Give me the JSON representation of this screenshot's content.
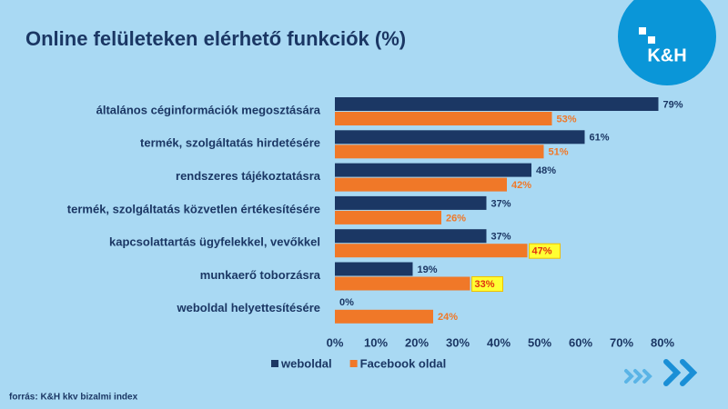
{
  "chart_data": {
    "type": "hbar",
    "title": "Online felületeken elérhető funkciók (%)",
    "logo": "K&H",
    "source": "forrás: K&H kkv bizalmi index",
    "categories": [
      "általános céginformációk megosztására",
      "termék, szolgáltatás hirdetésére",
      "rendszeres tájékoztatásra",
      "termék, szolgáltatás közvetlen értékesítésére",
      "kapcsolattartás ügyfelekkel, vevőkkel",
      "munkaerő toborzásra",
      "weboldal helyettesítésére"
    ],
    "series": [
      {
        "name": "weboldal",
        "color": "#1b3764",
        "values": [
          79,
          61,
          48,
          37,
          37,
          19,
          0
        ],
        "value_labels": [
          "79%",
          "61%",
          "48%",
          "37%",
          "37%",
          "19%",
          "0%"
        ]
      },
      {
        "name": "Facebook oldal",
        "color": "#f07828",
        "values": [
          53,
          51,
          42,
          26,
          47,
          33,
          24
        ],
        "value_labels": [
          "53%",
          "51%",
          "42%",
          "26%",
          "47%",
          "33%",
          "24%"
        ],
        "highlight": [
          false,
          false,
          false,
          false,
          true,
          true,
          false
        ]
      }
    ],
    "xlim": [
      0,
      80
    ],
    "xticks": [
      {
        "value": 0,
        "label": "0%"
      },
      {
        "value": 10,
        "label": "10%"
      },
      {
        "value": 20,
        "label": "20%"
      },
      {
        "value": 30,
        "label": "30%"
      },
      {
        "value": 40,
        "label": "40%"
      },
      {
        "value": 50,
        "label": "50%"
      },
      {
        "value": 60,
        "label": "60%"
      },
      {
        "value": 70,
        "label": "70%"
      },
      {
        "value": 80,
        "label": "80%"
      }
    ],
    "legend": "bottom"
  }
}
